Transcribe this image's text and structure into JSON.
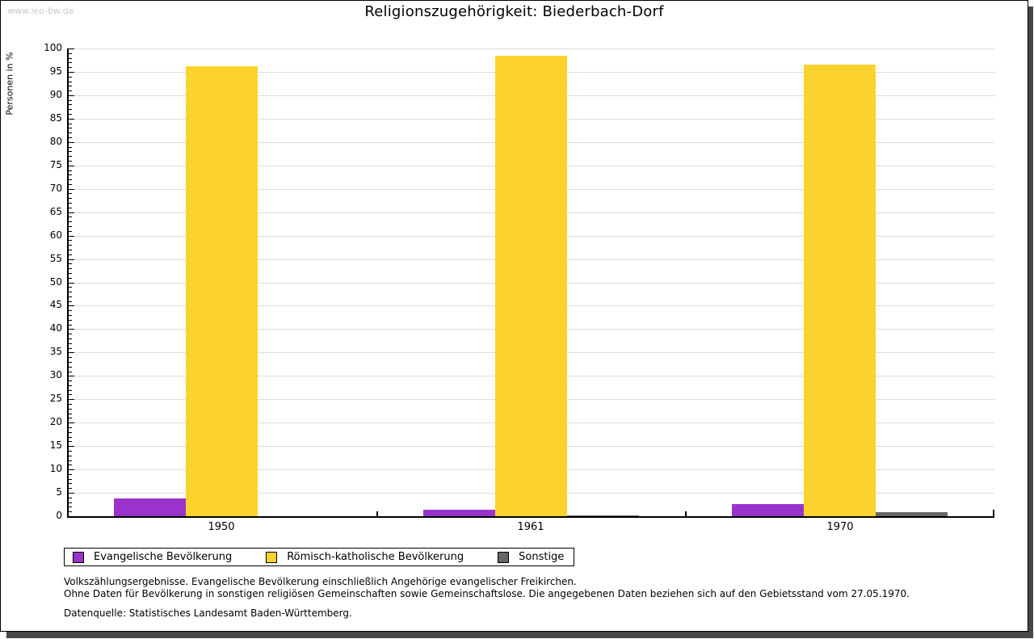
{
  "watermark": "www.leo-bw.de",
  "chart_data": {
    "type": "bar",
    "title": "Religionszugehörigkeit: Biederbach-Dorf",
    "categories": [
      "1950",
      "1961",
      "1970"
    ],
    "series": [
      {
        "name": "Evangelische Bevölkerung",
        "color": "#9933cc",
        "values": [
          3.8,
          1.3,
          2.6
        ]
      },
      {
        "name": "Römisch-katholische Bevölkerung",
        "color": "#fcd32e",
        "values": [
          96.2,
          98.5,
          96.5
        ]
      },
      {
        "name": "Sonstige",
        "color": "#666666",
        "values": [
          0.0,
          0.2,
          0.9
        ]
      }
    ],
    "xlabel": "",
    "ylabel": "Personen in %",
    "ylim": [
      0,
      100
    ],
    "ytick_major_step": 5,
    "ytick_minor_step": 1,
    "grid": true,
    "legend_position": "bottom",
    "grid_color": "#dcdcdc"
  },
  "footnotes": {
    "line1": "Volkszählungsergebnisse. Evangelische Bevölkerung einschließlich Angehörige evangelischer Freikirchen.",
    "line2": "Ohne Daten für Bevölkerung in sonstigen religiösen Gemeinschaften sowie Gemeinschaftslose. Die angegebenen Daten beziehen sich auf den Gebietsstand vom 27.05.1970.",
    "source": "Datenquelle: Statistisches Landesamt Baden-Württemberg."
  }
}
